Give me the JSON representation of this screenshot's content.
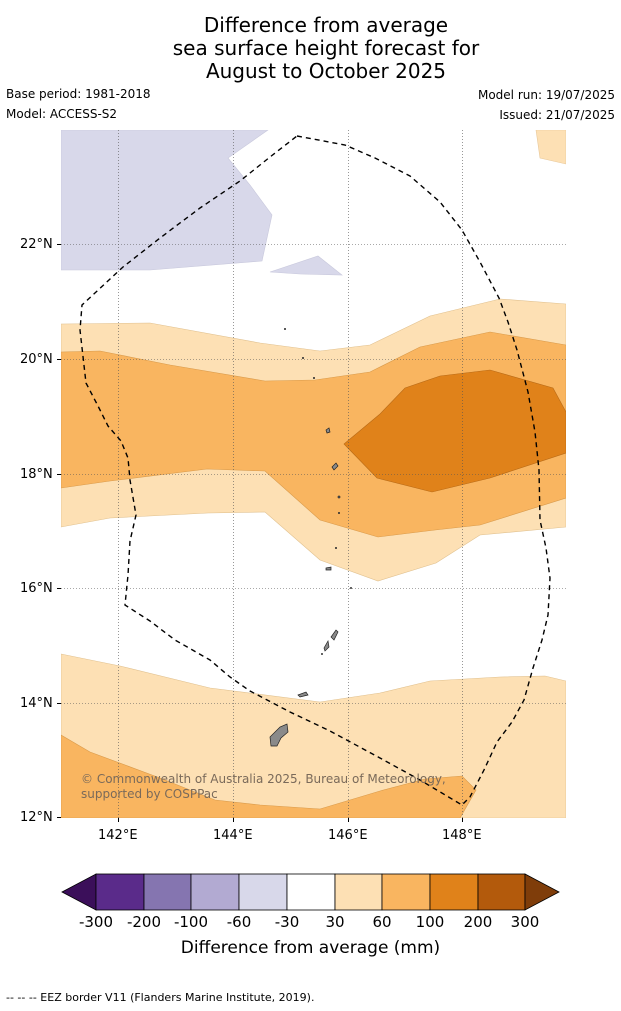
{
  "title": {
    "line1": "Difference from average",
    "line2": "sea surface height forecast for",
    "line3": "August to October 2025"
  },
  "meta": {
    "base_period": "Base period: 1981-2018",
    "model": "Model: ACCESS-S2",
    "model_run": "Model run: 19/07/2025",
    "issued": "Issued: 21/07/2025"
  },
  "map": {
    "lat_labels": [
      "22°N",
      "20°N",
      "18°N",
      "16°N",
      "14°N",
      "12°N"
    ],
    "lon_labels": [
      "142°E",
      "144°E",
      "146°E",
      "148°E"
    ],
    "copyright": "© Commonwealth of Australia 2025, Bureau of Meteorology, supported by COSPPac"
  },
  "colorbar": {
    "ticks": [
      "-300",
      "-200",
      "-100",
      "-60",
      "-30",
      "30",
      "60",
      "100",
      "200",
      "300"
    ],
    "colors": [
      "#3b0f5a",
      "#5a2b8a",
      "#8575b0",
      "#b2aad2",
      "#d8d8ea",
      "#ffffff",
      "#fde0b4",
      "#f9b560",
      "#e0821a",
      "#b35a0c",
      "#7f3d0a"
    ],
    "label": "Difference from average (mm)"
  },
  "footnote": "--  --  -- EEZ border V11 (Flanders Marine Institute, 2019)."
}
